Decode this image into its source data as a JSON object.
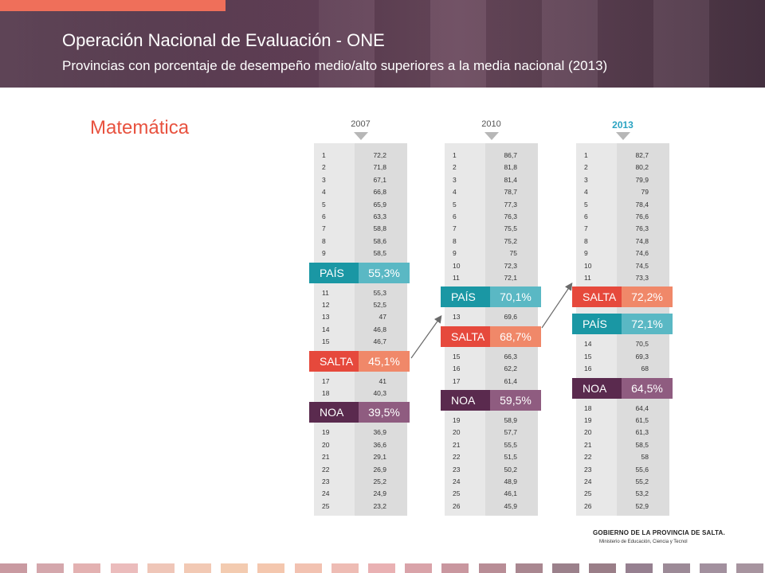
{
  "header": {
    "title": "Operación Nacional de Evaluación - ONE",
    "subtitle": "Provincias con porcentaje de desempeño medio/alto superiores a la media nacional  (2013)"
  },
  "subject": "Matemática",
  "colors": {
    "accent": "#ef6f5a",
    "pais": "#1a97a4",
    "salta": "#e6493c",
    "noa": "#5a2a4e",
    "year_highlight": "#2aa3c2"
  },
  "columns": [
    {
      "year": "2007",
      "items": [
        {
          "t": "row",
          "rank": "1",
          "value": "72,2"
        },
        {
          "t": "row",
          "rank": "2",
          "value": "71,8"
        },
        {
          "t": "row",
          "rank": "3",
          "value": "67,1"
        },
        {
          "t": "row",
          "rank": "4",
          "value": "66,8"
        },
        {
          "t": "row",
          "rank": "5",
          "value": "65,9"
        },
        {
          "t": "row",
          "rank": "6",
          "value": "63,3"
        },
        {
          "t": "row",
          "rank": "7",
          "value": "58,8"
        },
        {
          "t": "row",
          "rank": "8",
          "value": "58,6"
        },
        {
          "t": "row",
          "rank": "9",
          "value": "58,5"
        },
        {
          "t": "band",
          "kind": "pais",
          "label": "PAÍS",
          "value": "55,3%"
        },
        {
          "t": "row",
          "rank": "11",
          "value": "55,3"
        },
        {
          "t": "row",
          "rank": "12",
          "value": "52,5"
        },
        {
          "t": "row",
          "rank": "13",
          "value": "47"
        },
        {
          "t": "row",
          "rank": "14",
          "value": "46,8"
        },
        {
          "t": "row",
          "rank": "15",
          "value": "46,7"
        },
        {
          "t": "band",
          "kind": "salta",
          "label": "SALTA",
          "value": "45,1%"
        },
        {
          "t": "row",
          "rank": "17",
          "value": "41"
        },
        {
          "t": "row",
          "rank": "18",
          "value": "40,3"
        },
        {
          "t": "band",
          "kind": "noa",
          "label": "NOA",
          "value": "39,5%"
        },
        {
          "t": "row",
          "rank": "19",
          "value": "36,9"
        },
        {
          "t": "row",
          "rank": "20",
          "value": "36,6"
        },
        {
          "t": "row",
          "rank": "21",
          "value": "29,1"
        },
        {
          "t": "row",
          "rank": "22",
          "value": "26,9"
        },
        {
          "t": "row",
          "rank": "23",
          "value": "25,2"
        },
        {
          "t": "row",
          "rank": "24",
          "value": "24,9"
        },
        {
          "t": "row",
          "rank": "25",
          "value": "23,2"
        }
      ]
    },
    {
      "year": "2010",
      "items": [
        {
          "t": "row",
          "rank": "1",
          "value": "86,7"
        },
        {
          "t": "row",
          "rank": "2",
          "value": "81,8"
        },
        {
          "t": "row",
          "rank": "3",
          "value": "81,4"
        },
        {
          "t": "row",
          "rank": "4",
          "value": "78,7"
        },
        {
          "t": "row",
          "rank": "5",
          "value": "77,3"
        },
        {
          "t": "row",
          "rank": "6",
          "value": "76,3"
        },
        {
          "t": "row",
          "rank": "7",
          "value": "75,5"
        },
        {
          "t": "row",
          "rank": "8",
          "value": "75,2"
        },
        {
          "t": "row",
          "rank": "9",
          "value": "75"
        },
        {
          "t": "row",
          "rank": "10",
          "value": "72,3"
        },
        {
          "t": "row",
          "rank": "11",
          "value": "72,1"
        },
        {
          "t": "band",
          "kind": "pais",
          "label": "PAÍS",
          "value": "70,1%"
        },
        {
          "t": "row",
          "rank": "13",
          "value": "69,6"
        },
        {
          "t": "band",
          "kind": "salta",
          "label": "SALTA",
          "value": "68,7%"
        },
        {
          "t": "row",
          "rank": "15",
          "value": "66,3"
        },
        {
          "t": "row",
          "rank": "16",
          "value": "62,2"
        },
        {
          "t": "row",
          "rank": "17",
          "value": "61,4"
        },
        {
          "t": "band",
          "kind": "noa",
          "label": "NOA",
          "value": "59,5%"
        },
        {
          "t": "row",
          "rank": "19",
          "value": "58,9"
        },
        {
          "t": "row",
          "rank": "20",
          "value": "57,7"
        },
        {
          "t": "row",
          "rank": "21",
          "value": "55,5"
        },
        {
          "t": "row",
          "rank": "22",
          "value": "51,5"
        },
        {
          "t": "row",
          "rank": "23",
          "value": "50,2"
        },
        {
          "t": "row",
          "rank": "24",
          "value": "48,9"
        },
        {
          "t": "row",
          "rank": "25",
          "value": "46,1"
        },
        {
          "t": "row",
          "rank": "26",
          "value": "45,9"
        }
      ]
    },
    {
      "year": "2013",
      "highlight": true,
      "items": [
        {
          "t": "row",
          "rank": "1",
          "value": "82,7"
        },
        {
          "t": "row",
          "rank": "2",
          "value": "80,2"
        },
        {
          "t": "row",
          "rank": "3",
          "value": "79,9"
        },
        {
          "t": "row",
          "rank": "4",
          "value": "79"
        },
        {
          "t": "row",
          "rank": "5",
          "value": "78,4"
        },
        {
          "t": "row",
          "rank": "6",
          "value": "76,6"
        },
        {
          "t": "row",
          "rank": "7",
          "value": "76,3"
        },
        {
          "t": "row",
          "rank": "8",
          "value": "74,8"
        },
        {
          "t": "row",
          "rank": "9",
          "value": "74,6"
        },
        {
          "t": "row",
          "rank": "10",
          "value": "74,5"
        },
        {
          "t": "row",
          "rank": "11",
          "value": "73,3"
        },
        {
          "t": "band",
          "kind": "salta",
          "label": "SALTA",
          "value": "72,2%"
        },
        {
          "t": "band",
          "kind": "pais",
          "label": "PAÍS",
          "value": "72,1%"
        },
        {
          "t": "row",
          "rank": "14",
          "value": "70,5"
        },
        {
          "t": "row",
          "rank": "15",
          "value": "69,3"
        },
        {
          "t": "row",
          "rank": "16",
          "value": "68"
        },
        {
          "t": "band",
          "kind": "noa",
          "label": "NOA",
          "value": "64,5%"
        },
        {
          "t": "row",
          "rank": "18",
          "value": "64,4"
        },
        {
          "t": "row",
          "rank": "19",
          "value": "61,5"
        },
        {
          "t": "row",
          "rank": "20",
          "value": "61,3"
        },
        {
          "t": "row",
          "rank": "21",
          "value": "58,5"
        },
        {
          "t": "row",
          "rank": "22",
          "value": "58"
        },
        {
          "t": "row",
          "rank": "23",
          "value": "55,6"
        },
        {
          "t": "row",
          "rank": "24",
          "value": "55,2"
        },
        {
          "t": "row",
          "rank": "25",
          "value": "53,2"
        },
        {
          "t": "row",
          "rank": "26",
          "value": "52,9"
        }
      ]
    }
  ],
  "footer": {
    "org": "GOBIERNO DE LA PROVINCIA DE SALTA.",
    "ministry": "Ministerio de Educación, Ciencia y Tecnol"
  }
}
